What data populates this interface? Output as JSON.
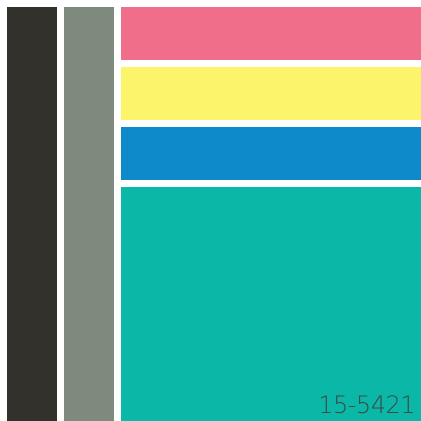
{
  "palette": {
    "swatches": [
      {
        "color": "#32312b"
      },
      {
        "color": "#7f8a7e"
      },
      {
        "color": "#f06e8a"
      },
      {
        "color": "#fcf46a"
      },
      {
        "color": "#0e8acb"
      },
      {
        "color": "#0bb7a6"
      }
    ],
    "label": "15-5421"
  }
}
